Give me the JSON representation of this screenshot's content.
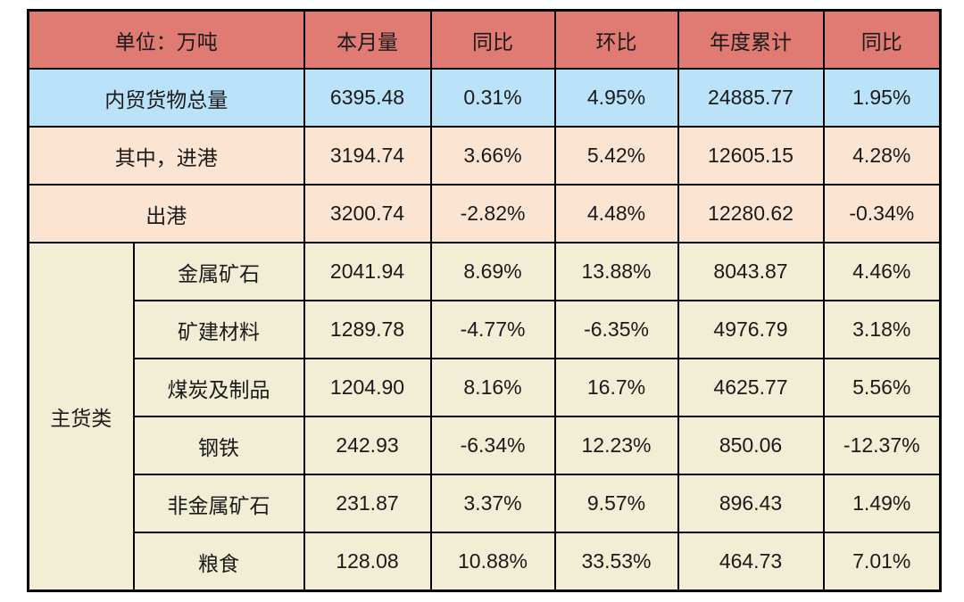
{
  "chart_data": {
    "type": "table",
    "title": "",
    "unit_label": "单位：万吨",
    "column_headers": [
      "本月量",
      "同比",
      "环比",
      "年度累计",
      "同比"
    ],
    "row_group_label": "主货类",
    "rows": [
      {
        "label": "内贸货物总量",
        "section": "total",
        "values": [
          "6395.48",
          "0.31%",
          "4.95%",
          "24885.77",
          "1.95%"
        ]
      },
      {
        "label": "其中，进港",
        "section": "subtotal",
        "values": [
          "3194.74",
          "3.66%",
          "5.42%",
          "12605.15",
          "4.28%"
        ]
      },
      {
        "label": "出港",
        "section": "subtotal",
        "values": [
          "3200.74",
          "-2.82%",
          "4.48%",
          "12280.62",
          "-0.34%"
        ]
      },
      {
        "label": "金属矿石",
        "section": "主货类",
        "values": [
          "2041.94",
          "8.69%",
          "13.88%",
          "8043.87",
          "4.46%"
        ]
      },
      {
        "label": "矿建材料",
        "section": "主货类",
        "values": [
          "1289.78",
          "-4.77%",
          "-6.35%",
          "4976.79",
          "3.18%"
        ]
      },
      {
        "label": "煤炭及制品",
        "section": "主货类",
        "values": [
          "1204.90",
          "8.16%",
          "16.7%",
          "4625.77",
          "5.56%"
        ]
      },
      {
        "label": "钢铁",
        "section": "主货类",
        "values": [
          "242.93",
          "-6.34%",
          "12.23%",
          "850.06",
          "-12.37%"
        ]
      },
      {
        "label": "非金属矿石",
        "section": "主货类",
        "values": [
          "231.87",
          "3.37%",
          "9.57%",
          "896.43",
          "1.49%"
        ]
      },
      {
        "label": "粮食",
        "section": "主货类",
        "values": [
          "128.08",
          "10.88%",
          "33.53%",
          "464.73",
          "7.01%"
        ]
      }
    ]
  },
  "colors": {
    "header_bg": "#df7b72",
    "total_bg": "#bae3f9",
    "sub_bg": "#fce4d3",
    "cat_bg": "#f2edd5",
    "group_bg": "#ffffff",
    "sub_label_text": "#f4894f",
    "border": "#000000",
    "text": "#1a1a1a"
  }
}
